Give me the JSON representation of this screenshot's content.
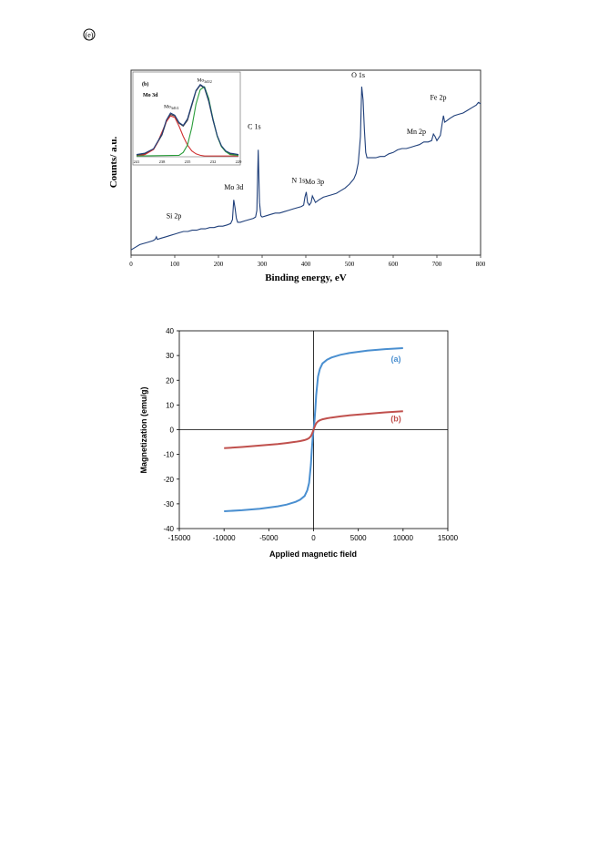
{
  "page": {
    "top_mark": "(e)"
  },
  "chart_data": [
    {
      "type": "line",
      "title": "",
      "xlabel": "Binding energy, eV",
      "ylabel": "Counts/ a.u.",
      "xlim": [
        0,
        800
      ],
      "xticks": [
        0,
        100,
        200,
        300,
        400,
        500,
        600,
        700,
        800
      ],
      "grid": false,
      "series": [
        {
          "color": "#1f3f7a",
          "x": [
            0,
            10,
            20,
            30,
            40,
            50,
            55,
            58,
            60,
            70,
            80,
            90,
            100,
            110,
            120,
            130,
            140,
            150,
            160,
            170,
            180,
            190,
            200,
            210,
            220,
            228,
            232,
            235,
            238,
            241,
            244,
            250,
            260,
            270,
            280,
            285,
            288,
            291,
            294,
            297,
            300,
            310,
            320,
            330,
            340,
            350,
            360,
            370,
            380,
            390,
            395,
            398,
            401,
            404,
            408,
            412,
            415,
            418,
            422,
            430,
            440,
            450,
            460,
            470,
            480,
            490,
            500,
            510,
            515,
            520,
            525,
            528,
            531,
            534,
            537,
            540,
            550,
            560,
            570,
            580,
            590,
            600,
            610,
            620,
            630,
            640,
            650,
            660,
            670,
            680,
            688,
            692,
            696,
            700,
            704,
            708,
            712,
            715,
            718,
            722,
            730,
            740,
            750,
            760,
            770,
            780,
            790,
            795,
            800
          ],
          "y": [
            4,
            6,
            8,
            9,
            10,
            11,
            12,
            14,
            12,
            13,
            14,
            15,
            16,
            17,
            18,
            18,
            19,
            19,
            20,
            20,
            21,
            21,
            22,
            22,
            23,
            24,
            27,
            42,
            36,
            28,
            25,
            25,
            26,
            27,
            28,
            29,
            34,
            80,
            40,
            30,
            29,
            30,
            31,
            32,
            32,
            33,
            34,
            35,
            36,
            37,
            38,
            44,
            48,
            40,
            38,
            40,
            45,
            43,
            40,
            42,
            44,
            45,
            46,
            47,
            49,
            51,
            54,
            58,
            62,
            70,
            90,
            128,
            118,
            96,
            78,
            74,
            74,
            74,
            75,
            75,
            77,
            78,
            80,
            81,
            81,
            82,
            83,
            84,
            86,
            86,
            87,
            92,
            90,
            87,
            89,
            91,
            100,
            106,
            101,
            102,
            104,
            106,
            107,
            108,
            110,
            112,
            114,
            116,
            115
          ]
        }
      ],
      "peak_labels": [
        {
          "text": "Si 2p",
          "x": 98,
          "y": 28
        },
        {
          "text": "Mo 3d",
          "x": 235,
          "y": 50
        },
        {
          "text": "C 1s",
          "x": 282,
          "y": 96
        },
        {
          "text": "N 1s",
          "x": 383,
          "y": 55
        },
        {
          "text": "Mo 3p",
          "x": 420,
          "y": 54
        },
        {
          "text": "O 1s",
          "x": 520,
          "y": 135
        },
        {
          "text": "Mn 2p",
          "x": 653,
          "y": 92
        },
        {
          "text": "Fe 2p",
          "x": 703,
          "y": 118
        }
      ],
      "inset": {
        "panel_label": "(b)",
        "heading": "Mo 3d",
        "xticks": [
          "241",
          "238",
          "235",
          "232",
          "229"
        ],
        "xlim": [
          241,
          229
        ],
        "peak_labels": [
          {
            "text": "Mo",
            "sub": "3d5/2",
            "x": 236.9,
            "y": 0.62
          },
          {
            "text": "Mo",
            "sub": "3d3/2",
            "x": 233.0,
            "y": 0.98
          }
        ],
        "series": [
          {
            "color": "#404040",
            "x": [
              241,
              240,
              239,
              238,
              237.5,
              237,
              236.5,
              236,
              235.5,
              235,
              234.5,
              234,
              233.5,
              233,
              232.5,
              232,
              231.5,
              231,
              230.5,
              230,
              229
            ],
            "y": [
              0.02,
              0.04,
              0.1,
              0.3,
              0.48,
              0.58,
              0.56,
              0.46,
              0.42,
              0.5,
              0.7,
              0.9,
              0.98,
              0.94,
              0.76,
              0.5,
              0.28,
              0.14,
              0.07,
              0.04,
              0.02
            ]
          },
          {
            "color": "#d03030",
            "x": [
              241,
              240,
              239,
              238.5,
              238,
              237.5,
              237,
              236.5,
              236,
              235.5,
              235,
              234.5,
              234,
              233.5,
              233,
              232,
              231,
              229
            ],
            "y": [
              0.01,
              0.03,
              0.1,
              0.2,
              0.34,
              0.48,
              0.56,
              0.54,
              0.42,
              0.28,
              0.16,
              0.08,
              0.04,
              0.02,
              0.01,
              0.01,
              0.01,
              0.01
            ]
          },
          {
            "color": "#2a9d3a",
            "x": [
              241,
              236,
              235.5,
              235,
              234.5,
              234,
              233.5,
              233,
              232.5,
              232,
              231.5,
              231,
              230.5,
              230,
              229
            ],
            "y": [
              0.01,
              0.02,
              0.06,
              0.16,
              0.4,
              0.72,
              0.92,
              0.96,
              0.8,
              0.52,
              0.28,
              0.14,
              0.07,
              0.03,
              0.02
            ]
          },
          {
            "color": "#1f3f7a",
            "x": [
              241,
              240,
              239,
              238,
              237.5,
              237,
              236.5,
              236,
              235.5,
              235,
              234.5,
              234,
              233.5,
              233,
              232.5,
              232,
              231.5,
              231,
              230.5,
              230,
              229
            ],
            "y": [
              0.03,
              0.05,
              0.11,
              0.31,
              0.5,
              0.6,
              0.57,
              0.47,
              0.43,
              0.52,
              0.72,
              0.91,
              0.99,
              0.95,
              0.77,
              0.51,
              0.29,
              0.15,
              0.08,
              0.05,
              0.03
            ]
          }
        ]
      }
    },
    {
      "type": "line",
      "title": "",
      "xlabel": "Applied magnetic field",
      "ylabel": "Magnetization (emu/g)",
      "xlim": [
        -15000,
        15000
      ],
      "ylim": [
        -40,
        40
      ],
      "xticks": [
        -15000,
        -10000,
        -5000,
        0,
        5000,
        10000,
        15000
      ],
      "yticks": [
        -40,
        -30,
        -20,
        -10,
        0,
        10,
        20,
        30,
        40
      ],
      "grid": false,
      "series": [
        {
          "name": "(a)",
          "color": "#4a8fd0",
          "x": [
            -10000,
            -8000,
            -6000,
            -4000,
            -3000,
            -2000,
            -1500,
            -1000,
            -700,
            -500,
            -300,
            -200,
            -100,
            0,
            100,
            200,
            300,
            500,
            700,
            1000,
            1500,
            2000,
            3000,
            4000,
            6000,
            8000,
            10000
          ],
          "y": [
            -33,
            -32.6,
            -32,
            -31,
            -30.3,
            -29.2,
            -28.3,
            -26.8,
            -24.5,
            -21.5,
            -14,
            -8.5,
            -3.5,
            0,
            3.5,
            8.5,
            14,
            21.5,
            24.5,
            26.8,
            28.3,
            29.2,
            30.3,
            31,
            32,
            32.6,
            33
          ]
        },
        {
          "name": "(b)",
          "color": "#c0504d",
          "x": [
            -10000,
            -8000,
            -6000,
            -4000,
            -3000,
            -2000,
            -1500,
            -1000,
            -700,
            -500,
            -300,
            -200,
            -100,
            0,
            100,
            200,
            300,
            500,
            700,
            1000,
            1500,
            2000,
            3000,
            4000,
            6000,
            8000,
            10000
          ],
          "y": [
            -7.5,
            -7,
            -6.4,
            -5.8,
            -5.4,
            -4.9,
            -4.6,
            -4.2,
            -3.8,
            -3.4,
            -2.6,
            -1.9,
            -1,
            0,
            1,
            1.9,
            2.6,
            3.4,
            3.8,
            4.2,
            4.6,
            4.9,
            5.4,
            5.8,
            6.4,
            7,
            7.5
          ]
        }
      ],
      "series_labels": [
        {
          "text": "(a)",
          "x": 9200,
          "y": 27.5
        },
        {
          "text": "(b)",
          "x": 9200,
          "y": 3.3
        }
      ]
    }
  ]
}
